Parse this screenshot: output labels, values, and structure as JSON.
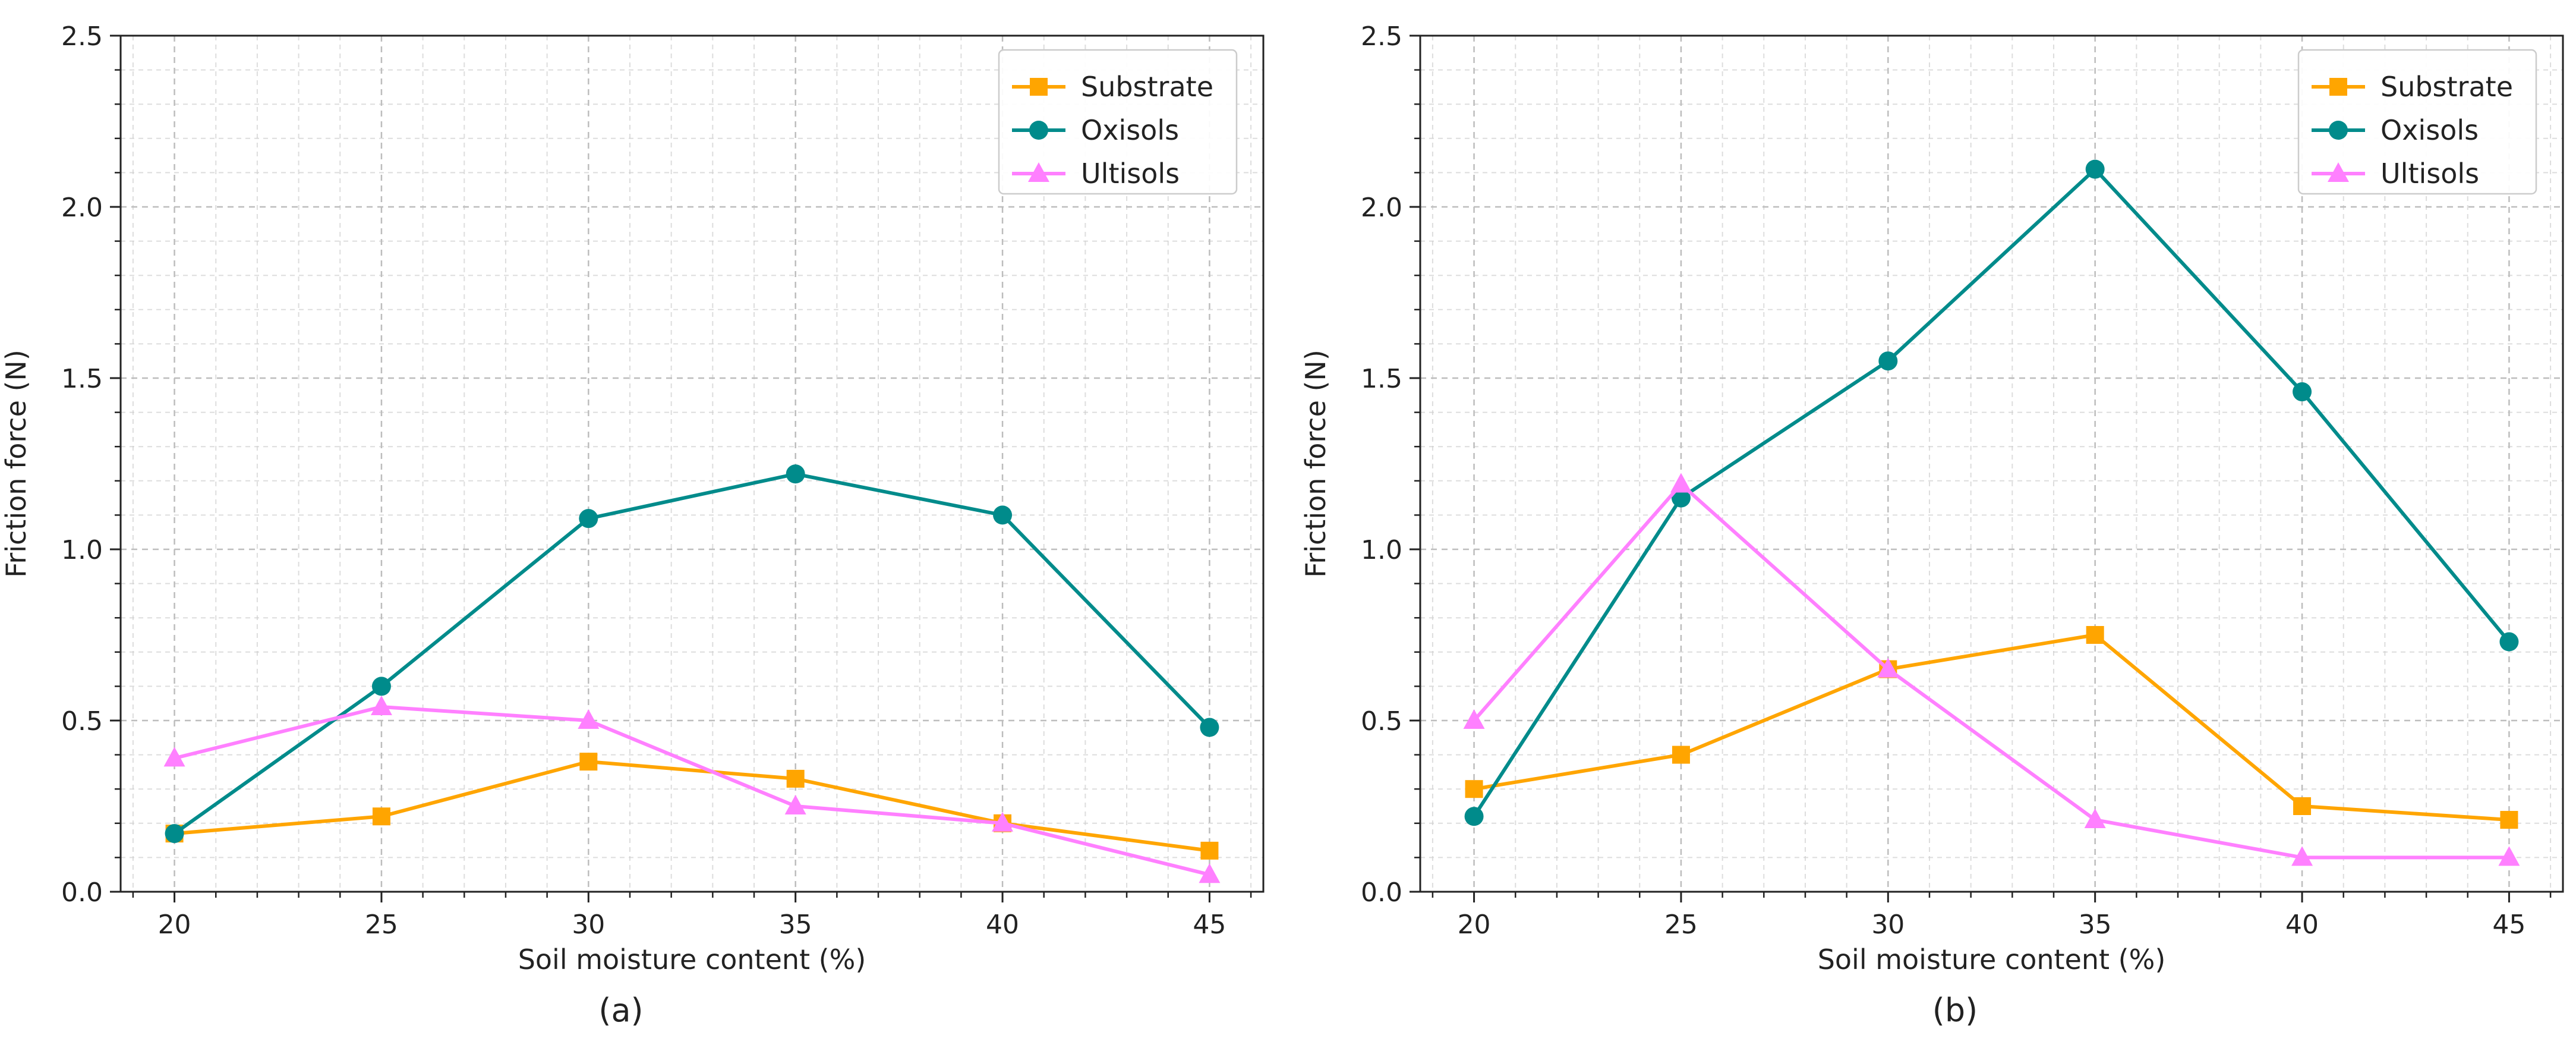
{
  "colors": {
    "substrate": "#FFA500",
    "oxisols": "#008B8B",
    "ultisols": "#FF80FF",
    "axis": "#222222",
    "grid": "#cfcfcf"
  },
  "chart_data": [
    {
      "type": "line",
      "caption": "(a)",
      "xlabel": "Soil moisture content (%)",
      "ylabel": "Friction force (N)",
      "x": [
        20,
        25,
        30,
        35,
        40,
        45
      ],
      "xlim": [
        18.7,
        46.3
      ],
      "ylim": [
        0,
        2.5
      ],
      "xticks": [
        20,
        25,
        30,
        35,
        40,
        45
      ],
      "yticks": [
        0.0,
        0.5,
        1.0,
        1.5,
        2.0,
        2.5
      ],
      "ytick_labels": [
        "0.0",
        "0.5",
        "1.0",
        "1.5",
        "2.0",
        "2.5"
      ],
      "grid": true,
      "legend_position": "top-right",
      "series": [
        {
          "name": "Substrate",
          "key": "substrate",
          "marker": "square",
          "values": [
            0.17,
            0.22,
            0.38,
            0.33,
            0.2,
            0.12
          ]
        },
        {
          "name": "Oxisols",
          "key": "oxisols",
          "marker": "circle",
          "values": [
            0.17,
            0.6,
            1.09,
            1.22,
            1.1,
            0.48
          ]
        },
        {
          "name": "Ultisols",
          "key": "ultisols",
          "marker": "triangle",
          "values": [
            0.39,
            0.54,
            0.5,
            0.25,
            0.2,
            0.05
          ]
        }
      ]
    },
    {
      "type": "line",
      "caption": "(b)",
      "xlabel": "Soil moisture content (%)",
      "ylabel": "Friction force (N)",
      "x": [
        20,
        25,
        30,
        35,
        40,
        45
      ],
      "xlim": [
        18.7,
        46.3
      ],
      "ylim": [
        0,
        2.5
      ],
      "xticks": [
        20,
        25,
        30,
        35,
        40,
        45
      ],
      "yticks": [
        0.0,
        0.5,
        1.0,
        1.5,
        2.0,
        2.5
      ],
      "ytick_labels": [
        "0.0",
        "0.5",
        "1.0",
        "1.5",
        "2.0",
        "2.5"
      ],
      "grid": true,
      "legend_position": "top-right",
      "series": [
        {
          "name": "Substrate",
          "key": "substrate",
          "marker": "square",
          "values": [
            0.3,
            0.4,
            0.65,
            0.75,
            0.25,
            0.21
          ]
        },
        {
          "name": "Oxisols",
          "key": "oxisols",
          "marker": "circle",
          "values": [
            0.22,
            1.15,
            1.55,
            2.11,
            1.46,
            0.73
          ]
        },
        {
          "name": "Ultisols",
          "key": "ultisols",
          "marker": "triangle",
          "values": [
            0.5,
            1.19,
            0.65,
            0.21,
            0.1,
            0.1
          ]
        }
      ]
    }
  ]
}
